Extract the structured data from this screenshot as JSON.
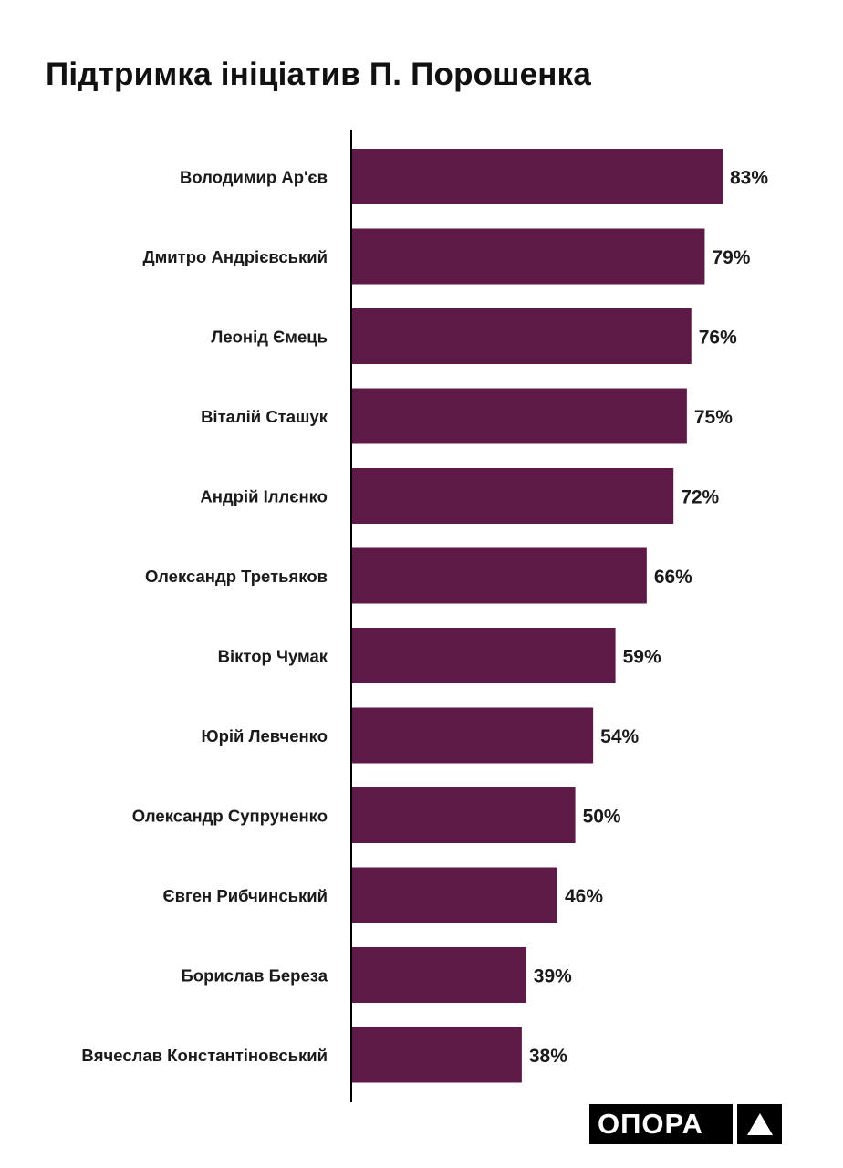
{
  "title": "Підтримка ініціатив П. Порошенка",
  "logo": {
    "text": "ОПОРА",
    "mark_icon": "triangle-icon"
  },
  "colors": {
    "bar": "#5e1a46",
    "text": "#1a1a1a",
    "axis": "#000000"
  },
  "chart_data": {
    "type": "bar",
    "orientation": "horizontal",
    "title": "Підтримка ініціатив П. Порошенка",
    "xlim": [
      0,
      100
    ],
    "grid": false,
    "legend": "none",
    "value_suffix": "%",
    "categories": [
      "Володимир Ар'єв",
      "Дмитро Андрієвський",
      "Леонід Ємець",
      "Віталій Сташук",
      "Андрій Іллєнко",
      "Олександр Третьяков",
      "Віктор Чумак",
      "Юрій Левченко",
      "Олександр Супруненко",
      "Євген Рибчинський",
      "Борислав Береза",
      "Вячеслав Константіновський"
    ],
    "values": [
      83,
      79,
      76,
      75,
      72,
      66,
      59,
      54,
      50,
      46,
      39,
      38
    ],
    "labels": [
      "83%",
      "79%",
      "76%",
      "75%",
      "72%",
      "66%",
      "59%",
      "54%",
      "50%",
      "46%",
      "39%",
      "38%"
    ]
  }
}
